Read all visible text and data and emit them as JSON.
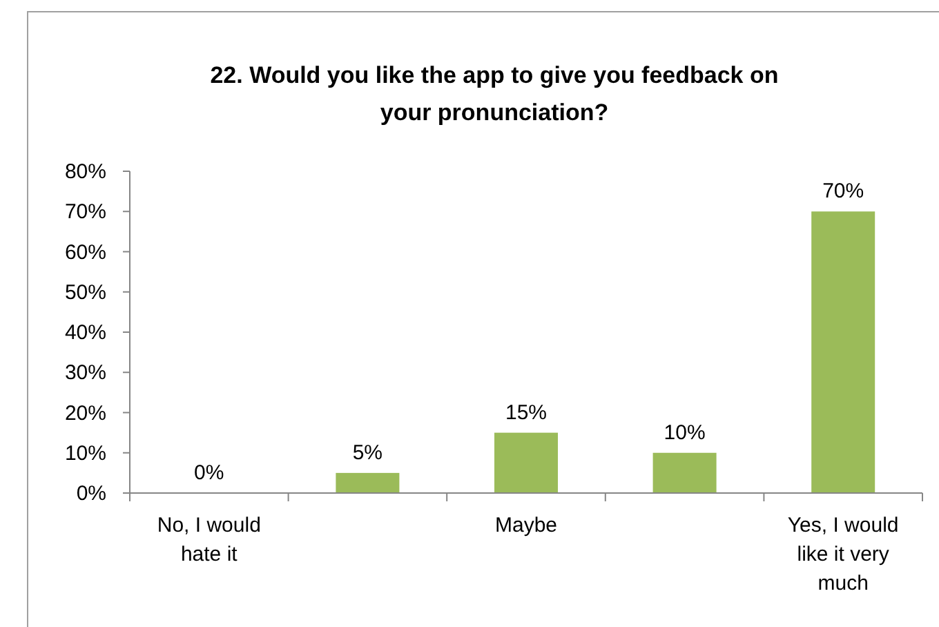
{
  "chart_data": {
    "type": "bar",
    "title": "22. Would you like the app to give you feedback on your pronunciation?",
    "categories": [
      "No, I would hate it",
      null,
      "Maybe",
      null,
      "Yes, I would like it very much"
    ],
    "values": [
      0,
      5,
      15,
      10,
      70
    ],
    "value_labels": [
      "0%",
      "5%",
      "15%",
      "10%",
      "70%"
    ],
    "color": "#9bbb59",
    "ylim": [
      0,
      80
    ],
    "yticks": [
      {
        "value": 0,
        "label": "0%"
      },
      {
        "value": 10,
        "label": "10%"
      },
      {
        "value": 20,
        "label": "20%"
      },
      {
        "value": 30,
        "label": "30%"
      },
      {
        "value": 40,
        "label": "40%"
      },
      {
        "value": 50,
        "label": "50%"
      },
      {
        "value": 60,
        "label": "60%"
      },
      {
        "value": 70,
        "label": "70%"
      },
      {
        "value": 80,
        "label": "80%"
      }
    ],
    "grid": false
  }
}
